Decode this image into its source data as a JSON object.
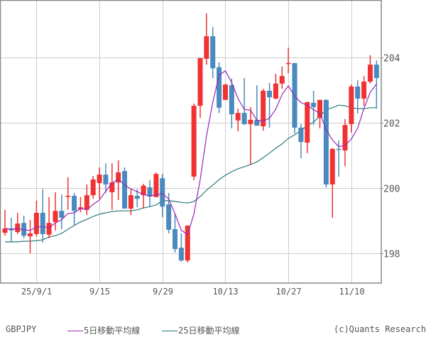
{
  "chart_data": {
    "type": "candlestick",
    "symbol": "GBPJPY",
    "title": "",
    "xlabel": "",
    "ylabel": "",
    "ylim": [
      197.05,
      205.75
    ],
    "y_ticks": [
      198,
      200,
      202,
      204
    ],
    "x_ticks": [
      {
        "label": "25/9/1",
        "index": 5
      },
      {
        "label": "9/15",
        "index": 15
      },
      {
        "label": "9/29",
        "index": 25
      },
      {
        "label": "10/13",
        "index": 35
      },
      {
        "label": "10/27",
        "index": 45
      },
      {
        "label": "11/10",
        "index": 55
      }
    ],
    "grid": true,
    "legend_position": "bottom",
    "colors": {
      "up": "#f03232",
      "down": "#4a8abf",
      "ma5": "#9a28b4",
      "ma25": "#2a7a78",
      "grid": "#cccccc",
      "axis": "#888888"
    },
    "series": [
      {
        "name": "5日移動平均線",
        "type": "line",
        "color": "#9a28b4"
      },
      {
        "name": "25日移動平均線",
        "type": "line",
        "color": "#2a7a78"
      }
    ],
    "candles": [
      {
        "o": 198.63,
        "h": 199.33,
        "l": 198.54,
        "c": 198.76
      },
      {
        "o": 198.76,
        "h": 199.09,
        "l": 198.35,
        "c": 198.7
      },
      {
        "o": 198.65,
        "h": 199.24,
        "l": 198.59,
        "c": 198.91
      },
      {
        "o": 198.93,
        "h": 199.15,
        "l": 198.46,
        "c": 198.54
      },
      {
        "o": 198.52,
        "h": 199.02,
        "l": 198.0,
        "c": 198.61
      },
      {
        "o": 198.59,
        "h": 199.61,
        "l": 198.52,
        "c": 199.24
      },
      {
        "o": 199.24,
        "h": 199.96,
        "l": 198.33,
        "c": 198.59
      },
      {
        "o": 198.57,
        "h": 199.72,
        "l": 198.46,
        "c": 198.93
      },
      {
        "o": 198.96,
        "h": 199.87,
        "l": 198.7,
        "c": 199.3
      },
      {
        "o": 199.3,
        "h": 199.8,
        "l": 198.74,
        "c": 199.09
      },
      {
        "o": 199.74,
        "h": 200.33,
        "l": 199.33,
        "c": 199.76
      },
      {
        "o": 199.76,
        "h": 199.85,
        "l": 198.85,
        "c": 199.3
      },
      {
        "o": 199.35,
        "h": 199.72,
        "l": 199.26,
        "c": 199.41
      },
      {
        "o": 199.33,
        "h": 200.11,
        "l": 199.17,
        "c": 199.78
      },
      {
        "o": 199.78,
        "h": 200.37,
        "l": 199.67,
        "c": 200.26
      },
      {
        "o": 200.15,
        "h": 200.63,
        "l": 199.67,
        "c": 200.41
      },
      {
        "o": 200.41,
        "h": 200.76,
        "l": 199.85,
        "c": 200.11
      },
      {
        "o": 199.87,
        "h": 200.76,
        "l": 199.33,
        "c": 200.17
      },
      {
        "o": 200.17,
        "h": 200.85,
        "l": 199.63,
        "c": 200.48
      },
      {
        "o": 200.52,
        "h": 200.63,
        "l": 199.46,
        "c": 199.37
      },
      {
        "o": 199.37,
        "h": 199.96,
        "l": 199.17,
        "c": 199.78
      },
      {
        "o": 199.76,
        "h": 199.96,
        "l": 199.41,
        "c": 199.67
      },
      {
        "o": 199.78,
        "h": 200.13,
        "l": 199.37,
        "c": 200.07
      },
      {
        "o": 200.02,
        "h": 200.24,
        "l": 199.41,
        "c": 199.74
      },
      {
        "o": 199.72,
        "h": 200.48,
        "l": 199.72,
        "c": 200.43
      },
      {
        "o": 200.3,
        "h": 200.43,
        "l": 199.11,
        "c": 199.43
      },
      {
        "o": 199.5,
        "h": 199.85,
        "l": 198.61,
        "c": 198.72
      },
      {
        "o": 198.74,
        "h": 199.22,
        "l": 198.02,
        "c": 198.13
      },
      {
        "o": 198.17,
        "h": 198.61,
        "l": 197.74,
        "c": 197.78
      },
      {
        "o": 197.78,
        "h": 198.85,
        "l": 197.72,
        "c": 198.85
      },
      {
        "o": 200.35,
        "h": 202.59,
        "l": 200.24,
        "c": 202.52
      },
      {
        "o": 202.52,
        "h": 203.98,
        "l": 202.15,
        "c": 203.98
      },
      {
        "o": 203.96,
        "h": 205.35,
        "l": 203.78,
        "c": 204.65
      },
      {
        "o": 204.65,
        "h": 204.93,
        "l": 203.37,
        "c": 203.67
      },
      {
        "o": 203.7,
        "h": 203.85,
        "l": 202.3,
        "c": 202.46
      },
      {
        "o": 202.7,
        "h": 203.2,
        "l": 202.7,
        "c": 203.17
      },
      {
        "o": 203.15,
        "h": 203.35,
        "l": 201.83,
        "c": 202.26
      },
      {
        "o": 202.07,
        "h": 202.43,
        "l": 201.74,
        "c": 202.3
      },
      {
        "o": 202.3,
        "h": 203.37,
        "l": 201.93,
        "c": 201.96
      },
      {
        "o": 201.96,
        "h": 202.48,
        "l": 200.72,
        "c": 202.09
      },
      {
        "o": 202.09,
        "h": 203.15,
        "l": 201.93,
        "c": 201.91
      },
      {
        "o": 201.89,
        "h": 203.04,
        "l": 201.76,
        "c": 202.98
      },
      {
        "o": 202.98,
        "h": 203.22,
        "l": 201.85,
        "c": 202.78
      },
      {
        "o": 202.74,
        "h": 203.5,
        "l": 202.72,
        "c": 203.2
      },
      {
        "o": 203.2,
        "h": 203.72,
        "l": 203.04,
        "c": 203.43
      },
      {
        "o": 203.8,
        "h": 204.3,
        "l": 203.52,
        "c": 203.83
      },
      {
        "o": 203.83,
        "h": 203.7,
        "l": 201.67,
        "c": 201.85
      },
      {
        "o": 201.85,
        "h": 201.96,
        "l": 200.91,
        "c": 201.41
      },
      {
        "o": 201.39,
        "h": 202.65,
        "l": 201.07,
        "c": 202.63
      },
      {
        "o": 202.61,
        "h": 202.98,
        "l": 201.93,
        "c": 202.48
      },
      {
        "o": 202.15,
        "h": 202.65,
        "l": 201.83,
        "c": 202.7
      },
      {
        "o": 202.7,
        "h": 202.72,
        "l": 200.02,
        "c": 200.11
      },
      {
        "o": 200.11,
        "h": 201.22,
        "l": 199.09,
        "c": 201.2
      },
      {
        "o": 201.2,
        "h": 201.46,
        "l": 200.35,
        "c": 201.17
      },
      {
        "o": 201.15,
        "h": 202.11,
        "l": 200.67,
        "c": 201.93
      },
      {
        "o": 201.96,
        "h": 203.17,
        "l": 201.7,
        "c": 203.11
      },
      {
        "o": 203.11,
        "h": 203.3,
        "l": 202.28,
        "c": 202.74
      },
      {
        "o": 202.74,
        "h": 203.43,
        "l": 202.52,
        "c": 203.26
      },
      {
        "o": 203.26,
        "h": 204.07,
        "l": 203.2,
        "c": 203.78
      },
      {
        "o": 203.78,
        "h": 203.91,
        "l": 202.43,
        "c": 203.37
      }
    ],
    "ma5": [
      198.76,
      198.74,
      198.76,
      198.72,
      198.7,
      198.8,
      198.82,
      198.78,
      198.93,
      199.03,
      199.22,
      199.24,
      199.37,
      199.34,
      199.5,
      199.63,
      199.9,
      200.15,
      200.27,
      200.1,
      199.97,
      199.89,
      199.8,
      199.75,
      199.8,
      199.82,
      199.67,
      199.21,
      198.7,
      198.58,
      199.2,
      200.26,
      201.59,
      202.63,
      203.46,
      203.59,
      203.24,
      202.74,
      202.41,
      202.38,
      202.08,
      202.05,
      202.14,
      202.41,
      202.87,
      203.13,
      202.82,
      202.62,
      202.53,
      202.4,
      202.29,
      201.79,
      201.47,
      201.27,
      201.3,
      201.5,
      201.83,
      202.44,
      202.93,
      203.19
    ],
    "ma25": [
      198.35,
      198.35,
      198.35,
      198.37,
      198.37,
      198.39,
      198.41,
      198.5,
      198.54,
      198.61,
      198.74,
      198.85,
      198.96,
      199.04,
      199.13,
      199.2,
      199.24,
      199.28,
      199.3,
      199.3,
      199.3,
      199.33,
      199.39,
      199.43,
      199.48,
      199.61,
      199.61,
      199.59,
      199.56,
      199.54,
      199.59,
      199.74,
      199.93,
      200.09,
      200.26,
      200.39,
      200.5,
      200.59,
      200.65,
      200.72,
      200.8,
      200.93,
      201.07,
      201.22,
      201.35,
      201.52,
      201.63,
      201.76,
      201.91,
      202.02,
      202.2,
      202.41,
      202.46,
      202.54,
      202.52,
      202.46,
      202.43,
      202.43,
      202.46,
      202.46
    ]
  },
  "legend": {
    "symbol": "GBPJPY",
    "ma5_label": "5日移動平均線",
    "ma25_label": "25日移動平均線",
    "credit": "(c)Quants Research"
  }
}
